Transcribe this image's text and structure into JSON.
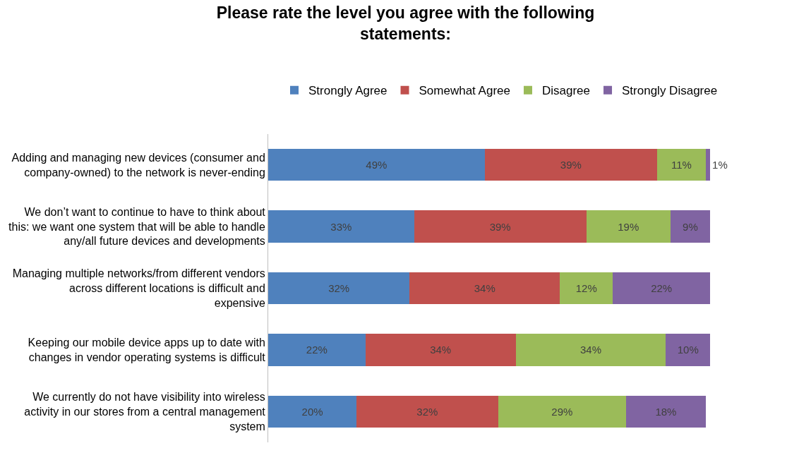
{
  "chart_data": {
    "type": "bar",
    "orientation": "horizontal",
    "stacked": true,
    "title": "Please rate the level you agree with the following statements:",
    "categories": [
      "Adding and managing new devices (consumer and company-owned) to the network is never-ending",
      "We don’t want to continue to have to think about this: we want one system that will be able to handle any/all future devices and developments",
      "Managing multiple networks/from different vendors across different locations is difficult and expensive",
      "Keeping our mobile device apps up to date with changes in vendor operating systems is difficult",
      "We currently do not have visibility into wireless activity in our stores from a central management system"
    ],
    "series": [
      {
        "name": "Strongly Agree",
        "color": "#4f81bd",
        "values": [
          49,
          33,
          32,
          22,
          20
        ],
        "value_labels": [
          "49%",
          "33%",
          "32%",
          "22%",
          "20%"
        ]
      },
      {
        "name": "Somewhat Agree",
        "color": "#c0504d",
        "values": [
          39,
          39,
          34,
          34,
          32
        ],
        "value_labels": [
          "39%",
          "39%",
          "34%",
          "34%",
          "32%"
        ]
      },
      {
        "name": "Disagree",
        "color": "#9bbb59",
        "values": [
          11,
          19,
          12,
          34,
          29
        ],
        "value_labels": [
          "11%",
          "19%",
          "12%",
          "34%",
          "29%"
        ]
      },
      {
        "name": "Strongly Disagree",
        "color": "#8064a2",
        "values": [
          1,
          9,
          22,
          10,
          18
        ],
        "value_labels": [
          "1%",
          "9%",
          "22%",
          "10%",
          "18%"
        ]
      }
    ],
    "legend": "top"
  }
}
